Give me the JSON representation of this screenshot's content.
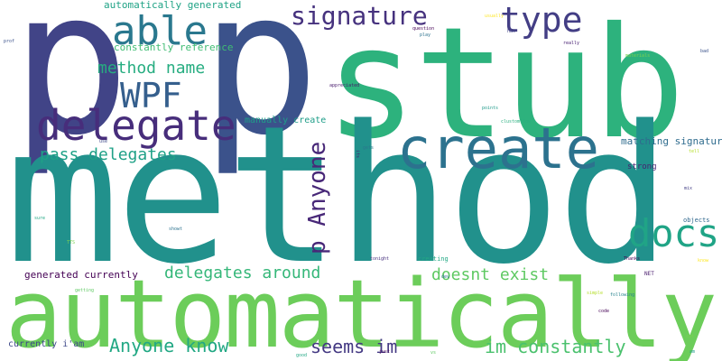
{
  "word_cloud": {
    "background_color": "#ffffff",
    "words": [
      {
        "id": "w_p_left",
        "text": "p",
        "color": "#414487"
      },
      {
        "id": "w_p_right",
        "text": "p",
        "color": "#3b528b"
      },
      {
        "id": "w_stub",
        "text": "stub",
        "color": "#2db27d"
      },
      {
        "id": "w_method",
        "text": "method",
        "color": "#21918c"
      },
      {
        "id": "w_automatically",
        "text": "automatically",
        "color": "#6ccd5a"
      },
      {
        "id": "w_create",
        "text": "create",
        "color": "#2c728e"
      },
      {
        "id": "w_delegate",
        "text": "delegate",
        "color": "#472d7b"
      },
      {
        "id": "w_wpf",
        "text": "WPF",
        "color": "#355f8d"
      },
      {
        "id": "w_able",
        "text": "able",
        "color": "#2a788e"
      },
      {
        "id": "w_signature",
        "text": "signature",
        "color": "#46327e"
      },
      {
        "id": "w_type",
        "text": "type",
        "color": "#433e85"
      },
      {
        "id": "w_docs",
        "text": "docs",
        "color": "#20a486"
      },
      {
        "id": "w_p_anyone",
        "text": "p Anyone",
        "color": "#482878"
      },
      {
        "id": "w_method_name",
        "text": "method name",
        "color": "#27ad81"
      },
      {
        "id": "w_pass_delegates",
        "text": "pass delegates",
        "color": "#1fa187"
      },
      {
        "id": "w_delegates_around",
        "text": "delegates around",
        "color": "#35b779"
      },
      {
        "id": "w_doesnt_exist",
        "text": "doesnt exist",
        "color": "#5ec962"
      },
      {
        "id": "w_anyone_know",
        "text": "Anyone know",
        "color": "#22a884"
      },
      {
        "id": "w_seems_im",
        "text": "seems im",
        "color": "#443983"
      },
      {
        "id": "w_im_constantly",
        "text": "im constantly",
        "color": "#4ac16d"
      },
      {
        "id": "w_automatically_generated",
        "text": "automatically generated",
        "color": "#20a386"
      },
      {
        "id": "w_constantly_reference",
        "text": "constantly reference",
        "color": "#3fbc73"
      },
      {
        "id": "w_manually_create",
        "text": "manually create",
        "color": "#1f9e89"
      },
      {
        "id": "w_matching_signature",
        "text": "matching signature",
        "color": "#2f6c8e"
      },
      {
        "id": "w_generated_currently",
        "text": "generated currently",
        "color": "#440154"
      },
      {
        "id": "w_currently_iam",
        "text": "currently i'am",
        "color": "#3e4989"
      },
      {
        "id": "w_strong",
        "text": "strong",
        "color": "#481f70"
      },
      {
        "id": "w_objects",
        "text": "objects",
        "color": "#31688e"
      },
      {
        "id": "w_creating",
        "text": "creating",
        "color": "#22a884"
      },
      {
        "id": "w_question",
        "text": "question",
        "color": "#440154"
      },
      {
        "id": "w_appreciated",
        "text": "appreciated",
        "color": "#481a6c"
      },
      {
        "id": "w_points",
        "text": "points",
        "color": "#1f9a8a"
      },
      {
        "id": "w_clustomflow",
        "text": "clustomflow",
        "color": "#29af7f"
      },
      {
        "id": "w_really",
        "text": "really",
        "color": "#482173"
      },
      {
        "id": "w_materials",
        "text": "materials",
        "color": "#7ad151"
      },
      {
        "id": "w_bad",
        "text": "bad",
        "color": "#3b528b"
      },
      {
        "id": "w_thanks",
        "text": "Thanks",
        "color": "#440154"
      },
      {
        "id": "w_net",
        "text": "NET",
        "color": "#481a6c"
      },
      {
        "id": "w_following",
        "text": "following",
        "color": "#26828e"
      },
      {
        "id": "w_code",
        "text": "code",
        "color": "#440154"
      },
      {
        "id": "w_tonight",
        "text": "tonight",
        "color": "#46307e"
      },
      {
        "id": "w_dev",
        "text": "dev",
        "color": "#2d708e"
      },
      {
        "id": "w_prof",
        "text": "prof",
        "color": "#3b528b"
      },
      {
        "id": "w_usually",
        "text": "usually",
        "color": "#fde725"
      },
      {
        "id": "w_has",
        "text": "has",
        "color": "#414487"
      },
      {
        "id": "w_play",
        "text": "play",
        "color": "#2c728e"
      },
      {
        "id": "w_good",
        "text": "good",
        "color": "#22a884"
      },
      {
        "id": "w_just",
        "text": "just",
        "color": "#440154"
      },
      {
        "id": "w_vs",
        "text": "vs",
        "color": "#5ec962"
      },
      {
        "id": "w_mix",
        "text": "mix",
        "color": "#433e85"
      },
      {
        "id": "w_tell",
        "text": "tell",
        "color": "#b5de2b"
      },
      {
        "id": "w_use",
        "text": "use",
        "color": "#3e4989"
      },
      {
        "id": "w_tts",
        "text": "TTS",
        "color": "#7ad151"
      },
      {
        "id": "w_sure",
        "text": "sure",
        "color": "#22a884"
      },
      {
        "id": "w_simple",
        "text": "simple",
        "color": "#b5de2b"
      },
      {
        "id": "w_getting",
        "text": "getting",
        "color": "#5ec962"
      },
      {
        "id": "w_gets",
        "text": "gets",
        "color": "#2a788e"
      },
      {
        "id": "w_showt",
        "text": "showt",
        "color": "#2c728e"
      },
      {
        "id": "w_know",
        "text": "know",
        "color": "#fde725"
      },
      {
        "id": "w_am",
        "text": "am",
        "color": "#1f9e89"
      },
      {
        "id": "w_its",
        "text": "its",
        "color": "#481f70"
      },
      {
        "id": "w_cat",
        "text": "cat",
        "color": "#7ad151"
      }
    ]
  }
}
